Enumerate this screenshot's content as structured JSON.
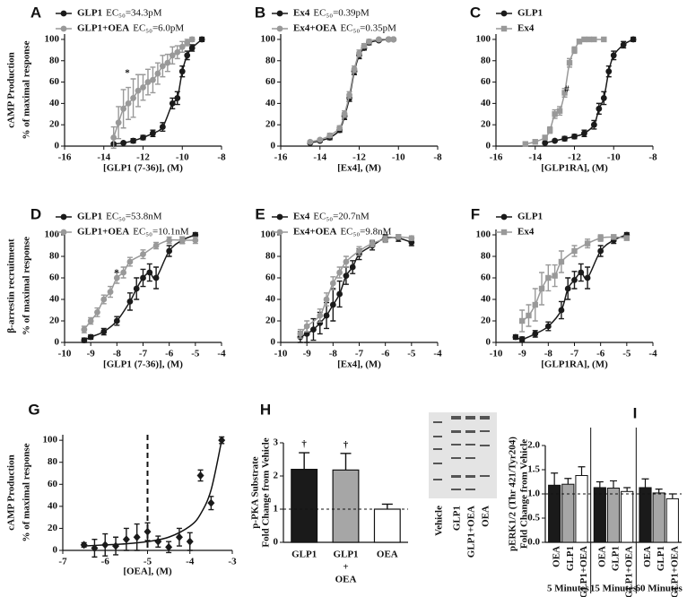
{
  "chart_data": [
    {
      "label": "A",
      "type": "dose-response",
      "ylabel": "cAMP Production",
      "ylabel2": "% of maximal response",
      "xlabel": "[GLP1 (7-36)], (M)",
      "annotation": "*",
      "xlim": [
        -16,
        -8
      ],
      "xticks": [
        -16,
        -14,
        -12,
        -10,
        -8
      ],
      "ylim": [
        0,
        105
      ],
      "yticks": [
        0,
        20,
        40,
        60,
        80,
        100
      ],
      "series": [
        {
          "name": "GLP1",
          "ec50": "EC₅₀=34.3pM",
          "color": "#1a1a1a",
          "marker": "circle",
          "x": [
            -13.5,
            -13,
            -12.5,
            -12,
            -11.5,
            -11,
            -10.5,
            -10.25,
            -10,
            -9.75,
            -9.5,
            -9
          ],
          "values": [
            2,
            3,
            5,
            8,
            12,
            18,
            40,
            45,
            70,
            85,
            92,
            100
          ],
          "errors": [
            1,
            1,
            2,
            2,
            3,
            4,
            5,
            6,
            5,
            4,
            3,
            2
          ]
        },
        {
          "name": "GLP1+OEA",
          "ec50": "EC₅₀=6.0pM",
          "color": "#999999",
          "marker": "circle",
          "x": [
            -13.5,
            -13.25,
            -13,
            -12.75,
            -12.5,
            -12.25,
            -12,
            -11.75,
            -11.5,
            -11.25,
            -11,
            -10.75,
            -10.5,
            -10.25,
            -10,
            -9.75,
            -9.5
          ],
          "values": [
            8,
            22,
            35,
            40,
            45,
            52,
            55,
            60,
            62,
            68,
            75,
            78,
            85,
            88,
            93,
            97,
            100
          ],
          "errors": [
            10,
            15,
            18,
            15,
            18,
            15,
            12,
            12,
            12,
            10,
            10,
            8,
            8,
            6,
            5,
            3,
            2
          ]
        }
      ]
    },
    {
      "label": "B",
      "type": "dose-response",
      "xlabel": "[Ex4], (M)",
      "xlim": [
        -16,
        -8
      ],
      "xticks": [
        -16,
        -14,
        -12,
        -10,
        -8
      ],
      "ylim": [
        0,
        105
      ],
      "yticks": [
        0,
        20,
        40,
        60,
        80,
        100
      ],
      "series": [
        {
          "name": "Ex4",
          "ec50": "EC₅₀=0.39pM",
          "color": "#1a1a1a",
          "marker": "circle",
          "x": [
            -14.5,
            -14,
            -13.5,
            -13,
            -12.75,
            -12.5,
            -12.25,
            -12,
            -11.75,
            -11.5,
            -11,
            -10.5,
            -10.25
          ],
          "values": [
            3,
            5,
            8,
            15,
            28,
            45,
            70,
            85,
            92,
            97,
            99,
            100,
            100
          ],
          "errors": [
            1,
            1,
            2,
            2,
            3,
            3,
            3,
            3,
            2,
            2,
            1,
            1,
            1
          ]
        },
        {
          "name": "Ex4+OEA",
          "ec50": "EC₅₀=0.35pM",
          "color": "#999999",
          "marker": "circle",
          "x": [
            -14.5,
            -14,
            -13.5,
            -13,
            -12.75,
            -12.5,
            -12.25,
            -12,
            -11.75,
            -11.5,
            -11,
            -10.5,
            -10.25
          ],
          "values": [
            4,
            6,
            10,
            17,
            30,
            48,
            72,
            87,
            94,
            98,
            100,
            100,
            100
          ],
          "errors": [
            1,
            1,
            2,
            2,
            3,
            3,
            3,
            3,
            2,
            2,
            1,
            1,
            1
          ]
        }
      ]
    },
    {
      "label": "C",
      "type": "dose-response",
      "xlabel": "[GLP1RA], (M)",
      "annotation": "#",
      "xlim": [
        -16,
        -8
      ],
      "xticks": [
        -16,
        -14,
        -12,
        -10,
        -8
      ],
      "ylim": [
        0,
        105
      ],
      "yticks": [
        0,
        20,
        40,
        60,
        80,
        100
      ],
      "series": [
        {
          "name": "GLP1",
          "color": "#1a1a1a",
          "marker": "circle",
          "x": [
            -13.5,
            -13,
            -12.5,
            -12,
            -11.5,
            -11,
            -10.75,
            -10.5,
            -10.25,
            -10,
            -9.5,
            -9
          ],
          "values": [
            3,
            5,
            7,
            9,
            12,
            20,
            35,
            45,
            70,
            85,
            95,
            100
          ],
          "errors": [
            1,
            1,
            2,
            2,
            3,
            4,
            5,
            6,
            5,
            4,
            3,
            2
          ]
        },
        {
          "name": "Ex4",
          "color": "#999999",
          "marker": "square",
          "x": [
            -14.5,
            -14,
            -13.5,
            -13.25,
            -13,
            -12.75,
            -12.5,
            -12.25,
            -12,
            -11.75,
            -11.5,
            -11.25,
            -11,
            -10.5
          ],
          "values": [
            2,
            4,
            8,
            15,
            30,
            33,
            50,
            78,
            90,
            98,
            100,
            100,
            100,
            100
          ],
          "errors": [
            1,
            1,
            2,
            3,
            4,
            4,
            4,
            4,
            3,
            2,
            1,
            1,
            1,
            1
          ]
        }
      ]
    },
    {
      "label": "D",
      "type": "dose-response",
      "ylabel": "β-arrestin recruitment",
      "ylabel2": "% of maximal response",
      "xlabel": "[GLP1 (7-36)], (M)",
      "annotation": "*",
      "xlim": [
        -10,
        -4
      ],
      "xticks": [
        -10,
        -9,
        -8,
        -7,
        -6,
        -5,
        -4
      ],
      "ylim": [
        0,
        105
      ],
      "yticks": [
        0,
        20,
        40,
        60,
        80,
        100
      ],
      "series": [
        {
          "name": "GLP1",
          "ec50": "EC₅₀=53.8nM",
          "color": "#1a1a1a",
          "marker": "circle",
          "x": [
            -9.25,
            -9,
            -8.5,
            -8,
            -7.5,
            -7.25,
            -7,
            -6.75,
            -6.5,
            -6,
            -5.5,
            -5
          ],
          "values": [
            2,
            5,
            10,
            20,
            38,
            50,
            60,
            65,
            60,
            85,
            95,
            100
          ],
          "errors": [
            2,
            2,
            3,
            4,
            8,
            10,
            8,
            8,
            10,
            5,
            3,
            2
          ]
        },
        {
          "name": "GLP1+OEA",
          "ec50": "EC₅₀=10.1nM",
          "color": "#999999",
          "marker": "circle",
          "x": [
            -9.25,
            -9,
            -8.75,
            -8.5,
            -8.25,
            -8,
            -7.75,
            -7.5,
            -7,
            -6.5,
            -6,
            -5.5,
            -5
          ],
          "values": [
            12,
            20,
            28,
            40,
            47,
            60,
            65,
            75,
            82,
            90,
            95,
            95,
            95
          ],
          "errors": [
            3,
            3,
            4,
            4,
            5,
            5,
            5,
            4,
            4,
            3,
            3,
            3,
            3
          ]
        }
      ]
    },
    {
      "label": "E",
      "type": "dose-response",
      "xlabel": "[Ex4], (M)",
      "xlim": [
        -10,
        -4
      ],
      "xticks": [
        -10,
        -9,
        -8,
        -7,
        -6,
        -5,
        -4
      ],
      "ylim": [
        0,
        105
      ],
      "yticks": [
        0,
        20,
        40,
        60,
        80,
        100
      ],
      "series": [
        {
          "name": "Ex4",
          "ec50": "EC₅₀=20.7nM",
          "color": "#1a1a1a",
          "marker": "circle",
          "x": [
            -9.25,
            -9,
            -8.75,
            -8.5,
            -8.25,
            -8,
            -7.75,
            -7.5,
            -7.25,
            -7,
            -6.5,
            -6,
            -5.5,
            -5
          ],
          "values": [
            5,
            8,
            12,
            18,
            25,
            35,
            45,
            62,
            70,
            82,
            90,
            97,
            97,
            93
          ],
          "errors": [
            5,
            8,
            10,
            10,
            12,
            15,
            12,
            8,
            6,
            5,
            4,
            3,
            3,
            3
          ]
        },
        {
          "name": "Ex4+OEA",
          "ec50": "EC₅₀=9.8nM",
          "color": "#999999",
          "marker": "circle",
          "x": [
            -9.25,
            -9,
            -8.5,
            -8.25,
            -8,
            -7.75,
            -7.5,
            -7,
            -6.5,
            -6,
            -5.5,
            -5
          ],
          "values": [
            8,
            15,
            25,
            40,
            55,
            65,
            75,
            85,
            92,
            96,
            98,
            97
          ],
          "errors": [
            4,
            5,
            6,
            6,
            6,
            5,
            5,
            4,
            3,
            3,
            2,
            2
          ]
        }
      ]
    },
    {
      "label": "F",
      "type": "dose-response",
      "xlabel": "[GLP1RA], (M)",
      "xlim": [
        -10,
        -4
      ],
      "xticks": [
        -10,
        -9,
        -8,
        -7,
        -6,
        -5,
        -4
      ],
      "ylim": [
        0,
        105
      ],
      "yticks": [
        0,
        20,
        40,
        60,
        80,
        100
      ],
      "series": [
        {
          "name": "GLP1",
          "color": "#1a1a1a",
          "marker": "circle",
          "x": [
            -9.25,
            -9,
            -8.5,
            -8,
            -7.5,
            -7.25,
            -7,
            -6.75,
            -6.5,
            -6,
            -5.5,
            -5
          ],
          "values": [
            5,
            3,
            8,
            15,
            30,
            50,
            58,
            65,
            60,
            85,
            95,
            100
          ],
          "errors": [
            2,
            2,
            3,
            4,
            8,
            10,
            8,
            8,
            10,
            5,
            3,
            2
          ]
        },
        {
          "name": "Ex4",
          "color": "#999999",
          "marker": "square",
          "x": [
            -9,
            -8.75,
            -8.5,
            -8.25,
            -8,
            -7.75,
            -7.5,
            -7,
            -6.5,
            -6,
            -5.5,
            -5
          ],
          "values": [
            20,
            25,
            35,
            50,
            60,
            62,
            75,
            85,
            92,
            97,
            98,
            97
          ],
          "errors": [
            10,
            10,
            15,
            15,
            12,
            10,
            10,
            5,
            4,
            3,
            2,
            2
          ]
        }
      ]
    },
    {
      "label": "G",
      "type": "dose-response",
      "ylabel": "cAMP Production",
      "ylabel2": "% of maximal response",
      "xlabel": "[OEA], (M)",
      "xlim": [
        -7,
        -3
      ],
      "xticks": [
        -7,
        -6,
        -5,
        -4,
        -3
      ],
      "ylim": [
        0,
        105
      ],
      "yticks": [
        0,
        20,
        40,
        60,
        80,
        100
      ],
      "vline": -5,
      "fit": {
        "x": [
          -6.5,
          -6,
          -5.5,
          -5,
          -4.5,
          -4,
          -3.75,
          -3.5,
          -3.25
        ],
        "values": [
          4,
          5,
          6,
          8,
          12,
          22,
          33,
          55,
          100
        ]
      },
      "series": [
        {
          "color": "#1a1a1a",
          "marker": "diamond",
          "x": [
            -6.5,
            -6.25,
            -6,
            -5.75,
            -5.5,
            -5.25,
            -5,
            -4.75,
            -4.5,
            -4.25,
            -4,
            -3.75,
            -3.5,
            -3.25
          ],
          "values": [
            5,
            2,
            5,
            4,
            10,
            12,
            17,
            8,
            3,
            12,
            8,
            68,
            43,
            100
          ],
          "errors": [
            2,
            8,
            10,
            8,
            10,
            12,
            8,
            5,
            5,
            8,
            8,
            5,
            6,
            3
          ]
        }
      ]
    },
    {
      "label": "H",
      "type": "bar",
      "ylabel": "p-PKA Substrate",
      "ylabel2": "Fold Change from Vehicle",
      "categories": [
        "GLP1",
        [
          "GLP1",
          "+",
          "OEA"
        ],
        "OEA"
      ],
      "values": [
        2.2,
        2.18,
        1.0
      ],
      "errors": [
        0.5,
        0.5,
        0.15
      ],
      "colors": [
        "#1a1a1a",
        "#a6a6a6",
        "#ffffff"
      ],
      "value_notes": [
        "†",
        "†",
        null
      ],
      "refline": 1,
      "ylim": [
        0,
        3
      ],
      "yticks": [
        0,
        1,
        2,
        3
      ]
    },
    {
      "label": "I",
      "type": "grouped-bar",
      "ylabel": "pERK1/2 (Thr 421/Tyr204)",
      "ylabel2": "Fold Change from Vehicle",
      "groups": [
        "5 Minutes",
        "15 Minutes",
        "60 Minutes"
      ],
      "refline": 1,
      "series": [
        {
          "name": "OEA",
          "color": "#1a1a1a",
          "values": [
            1.18,
            1.13,
            1.13
          ],
          "errors": [
            0.25,
            0.12,
            0.18
          ]
        },
        {
          "name": "GLP1",
          "color": "#a6a6a6",
          "values": [
            1.2,
            1.12,
            1.02
          ],
          "errors": [
            0.12,
            0.15,
            0.08
          ]
        },
        {
          "name": "GLP1+OEA",
          "color": "#ffffff",
          "values": [
            1.38,
            1.05,
            0.9
          ],
          "errors": [
            0.18,
            0.08,
            0.1
          ]
        }
      ],
      "ylim": [
        0,
        2
      ],
      "yticks": [
        {
          "value": 0,
          "label": "0.0"
        },
        {
          "value": 0.5,
          "label": "0.5"
        },
        {
          "value": 1,
          "label": "1.0"
        },
        {
          "value": 1.5,
          "label": "1.5"
        },
        {
          "value": 2,
          "label": "2.0"
        }
      ]
    }
  ],
  "blot": {
    "lanes": [
      "Vehicle",
      "GLP1",
      "GLP1+OEA",
      "OEA"
    ]
  }
}
